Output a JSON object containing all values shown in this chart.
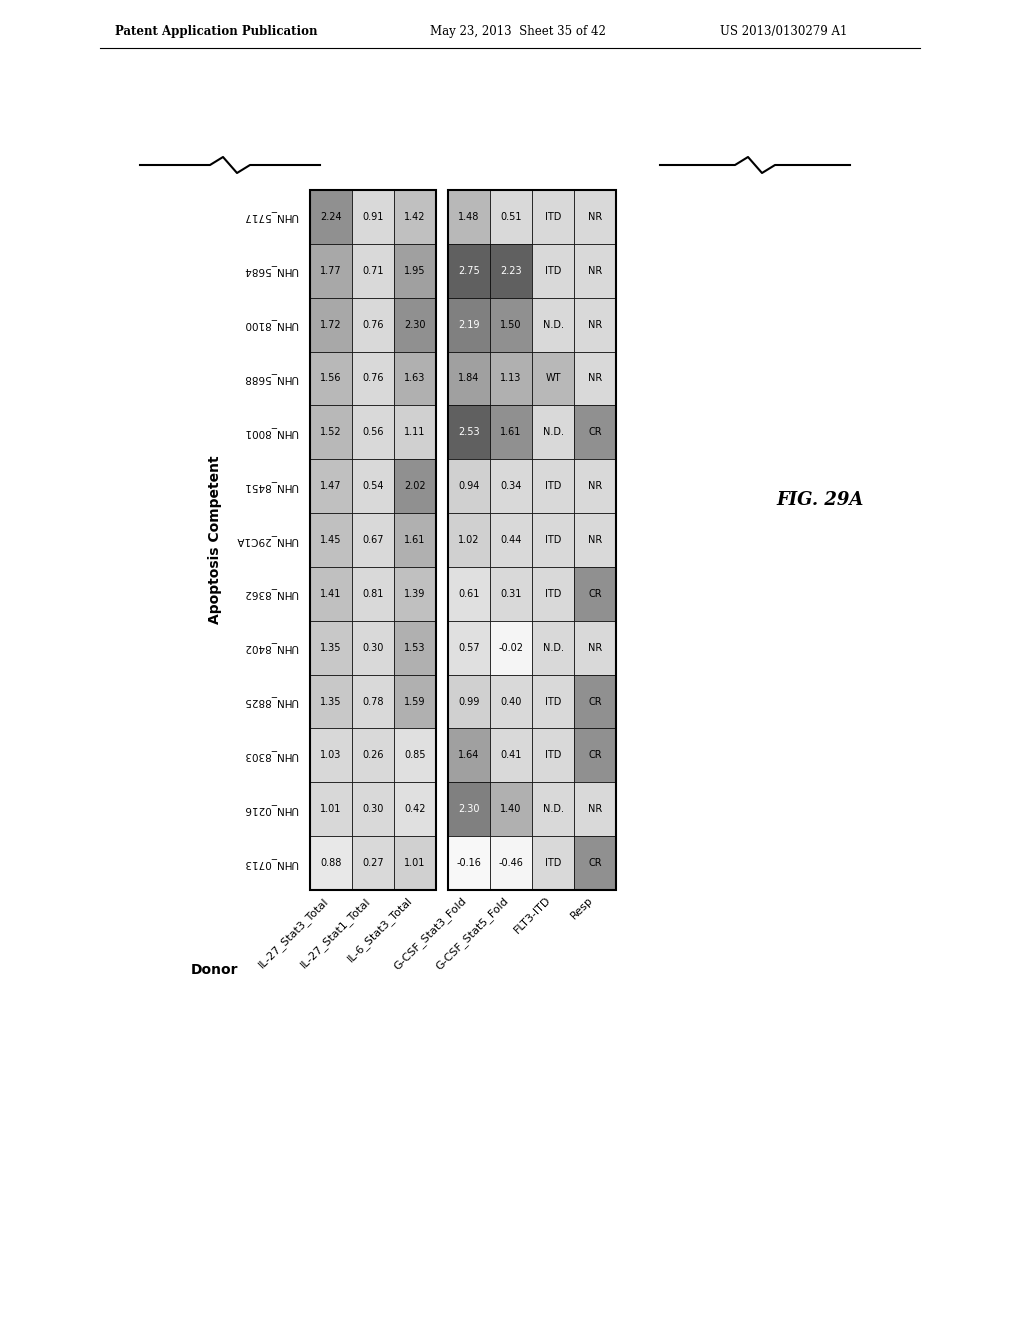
{
  "donors": [
    "UHN_5717",
    "UHN_5684",
    "UHN_8100",
    "UHN_5688",
    "UHN_8001",
    "UHN_8451",
    "UHN_29C1A",
    "UHN_8362",
    "UHN_8402",
    "UHN_8825",
    "UHN_8303",
    "UHN_0216",
    "UHN_0713"
  ],
  "col_labels": [
    "IL-27_Stat3_Total",
    "IL-27_Stat1_Total",
    "IL-6_Stat3_Total",
    "G-CSF_Stat3_Fold",
    "G-CSF_Stat5_Fold",
    "FLT3-ITD",
    "Resp"
  ],
  "table_data": [
    [
      "2.24",
      "0.91",
      "1.42",
      "1.48",
      "0.51",
      "ITD",
      "NR"
    ],
    [
      "1.77",
      "0.71",
      "1.95",
      "2.75",
      "2.23",
      "ITD",
      "NR"
    ],
    [
      "1.72",
      "0.76",
      "2.30",
      "2.19",
      "1.50",
      "N.D.",
      "NR"
    ],
    [
      "1.56",
      "0.76",
      "1.63",
      "1.84",
      "1.13",
      "WT",
      "NR"
    ],
    [
      "1.52",
      "0.56",
      "1.11",
      "2.53",
      "1.61",
      "N.D.",
      "CR"
    ],
    [
      "1.47",
      "0.54",
      "2.02",
      "0.94",
      "0.34",
      "ITD",
      "NR"
    ],
    [
      "1.45",
      "0.67",
      "1.61",
      "1.02",
      "0.44",
      "ITD",
      "NR"
    ],
    [
      "1.41",
      "0.81",
      "1.39",
      "0.61",
      "0.31",
      "ITD",
      "CR"
    ],
    [
      "1.35",
      "0.30",
      "1.53",
      "0.57",
      "-0.02",
      "N.D.",
      "NR"
    ],
    [
      "1.35",
      "0.78",
      "1.59",
      "0.99",
      "0.40",
      "ITD",
      "CR"
    ],
    [
      "1.03",
      "0.26",
      "0.85",
      "1.64",
      "0.41",
      "ITD",
      "CR"
    ],
    [
      "1.01",
      "0.30",
      "0.42",
      "2.30",
      "1.40",
      "N.D.",
      "NR"
    ],
    [
      "0.88",
      "0.27",
      "1.01",
      "-0.16",
      "-0.46",
      "ITD",
      "CR"
    ]
  ],
  "cell_colors": [
    [
      "#b0b0b0",
      "#d0d0d0",
      "#c8c8c8",
      "#c8c8c8",
      "#d9d9d9",
      "#d9d9d9",
      "#d9d9d9"
    ],
    [
      "#b8b8b8",
      "#d0d0d0",
      "#b0b0b0",
      "#606060",
      "#606060",
      "#d9d9d9",
      "#d9d9d9"
    ],
    [
      "#c0c0c0",
      "#d0d0d0",
      "#909090",
      "#808080",
      "#b0b0b0",
      "#d9d9d9",
      "#d9d9d9"
    ],
    [
      "#c8c8c8",
      "#d0d0d0",
      "#c0c0c0",
      "#a0a0a0",
      "#c8c8c8",
      "#b8b8b8",
      "#d9d9d9"
    ],
    [
      "#c8c8c8",
      "#d0d0d0",
      "#d0d0d0",
      "#606060",
      "#b0b0b0",
      "#d9d9d9",
      "#808080"
    ],
    [
      "#c8c8c8",
      "#d0d0d0",
      "#909090",
      "#d9d9d9",
      "#d9d9d9",
      "#d9d9d9",
      "#d9d9d9"
    ],
    [
      "#c8c8c8",
      "#d0d0d0",
      "#c0c0c0",
      "#d0d0d0",
      "#d9d9d9",
      "#d9d9d9",
      "#d9d9d9"
    ],
    [
      "#c8c8c8",
      "#d0d0d0",
      "#c8c8c8",
      "#e0e0e0",
      "#d9d9d9",
      "#d9d9d9",
      "#808080"
    ],
    [
      "#d0d0d0",
      "#d0d0d0",
      "#c0c0c0",
      "#e0e0e0",
      "#f0f0f0",
      "#d9d9d9",
      "#d9d9d9"
    ],
    [
      "#d0d0d0",
      "#d0d0d0",
      "#c0c0c0",
      "#e0e0e0",
      "#d9d9d9",
      "#d9d9d9",
      "#808080"
    ],
    [
      "#e0e0e0",
      "#d0d0d0",
      "#e0e0e0",
      "#b0b0b0",
      "#d9d9d9",
      "#d9d9d9",
      "#808080"
    ],
    [
      "#e0e0e0",
      "#d0d0d0",
      "#f0f0f0",
      "#808080",
      "#b8b8b8",
      "#d9d9d9",
      "#d9d9d9"
    ],
    [
      "#e8e8e8",
      "#d0d0d0",
      "#e0e0e0",
      "#ffffff",
      "#ffffff",
      "#d9d9d9",
      "#808080"
    ]
  ],
  "patent_header_left": "Patent Application Publication",
  "patent_header_mid": "May 23, 2013  Sheet 35 of 42",
  "patent_header_right": "US 2013/0130279 A1",
  "apoptosis_label": "Apoptosis Competent",
  "donor_label": "Donor",
  "fig_label": "FIG. 29A"
}
